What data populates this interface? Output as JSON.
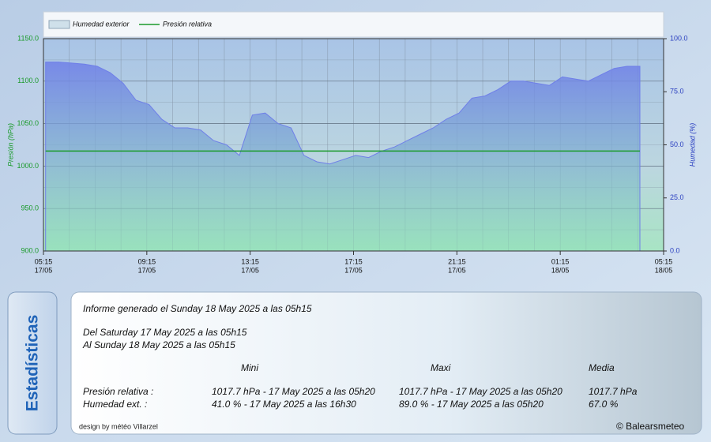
{
  "chart_data": {
    "type": "line",
    "ylabel": "Presión (hPa)",
    "y2label": "Humedad (%)",
    "ylim": [
      900,
      1150
    ],
    "yticks": [
      {
        "value": 900,
        "label": "900.0"
      },
      {
        "value": 950,
        "label": "950.0"
      },
      {
        "value": 1000,
        "label": "1000.0"
      },
      {
        "value": 1050,
        "label": "1050.0"
      },
      {
        "value": 1100,
        "label": "1100.0"
      },
      {
        "value": 1150,
        "label": "1150.0"
      }
    ],
    "y2lim": [
      0,
      100
    ],
    "y2ticks": [
      {
        "value": 0,
        "label": "0.0"
      },
      {
        "value": 25,
        "label": "25.0"
      },
      {
        "value": 50,
        "label": "50.0"
      },
      {
        "value": 75,
        "label": "75.0"
      },
      {
        "value": 100,
        "label": "100.0"
      }
    ],
    "xlim": [
      "17/05 05:15",
      "18/05 05:15"
    ],
    "xticks": [
      {
        "value": "17/05 05:15",
        "label": [
          "05:15",
          "17/05"
        ]
      },
      {
        "value": "17/05 09:15",
        "label": [
          "09:15",
          "17/05"
        ]
      },
      {
        "value": "17/05 13:15",
        "label": [
          "13:15",
          "17/05"
        ]
      },
      {
        "value": "17/05 17:15",
        "label": [
          "17:15",
          "17/05"
        ]
      },
      {
        "value": "17/05 21:15",
        "label": [
          "21:15",
          "17/05"
        ]
      },
      {
        "value": "18/05 01:15",
        "label": [
          "01:15",
          "18/05"
        ]
      },
      {
        "value": "18/05 05:15",
        "label": [
          "05:15",
          "18/05"
        ]
      }
    ],
    "grid": true,
    "x": [
      "17/05 05:20",
      "17/05 05:50",
      "17/05 06:20",
      "17/05 06:50",
      "17/05 07:20",
      "17/05 07:50",
      "17/05 08:20",
      "17/05 08:50",
      "17/05 09:20",
      "17/05 09:50",
      "17/05 10:20",
      "17/05 10:50",
      "17/05 11:20",
      "17/05 11:50",
      "17/05 12:20",
      "17/05 12:50",
      "17/05 13:20",
      "17/05 13:50",
      "17/05 14:20",
      "17/05 14:50",
      "17/05 15:20",
      "17/05 15:50",
      "17/05 16:20",
      "17/05 16:50",
      "17/05 17:20",
      "17/05 17:50",
      "17/05 18:20",
      "17/05 18:50",
      "17/05 19:20",
      "17/05 19:50",
      "17/05 20:20",
      "17/05 20:50",
      "17/05 21:20",
      "17/05 21:50",
      "17/05 22:20",
      "17/05 22:50",
      "17/05 23:20",
      "17/05 23:50",
      "18/05 00:20",
      "18/05 00:50",
      "18/05 01:20",
      "18/05 01:50",
      "18/05 02:20",
      "18/05 02:50",
      "18/05 03:20",
      "18/05 03:50",
      "18/05 04:20"
    ],
    "series": [
      {
        "name": "Humedad exterior",
        "color": "#6f7fe8",
        "style": "area",
        "axis": "y2",
        "values": [
          89,
          89,
          88.5,
          88,
          87,
          84,
          79,
          71,
          69,
          62,
          58,
          58,
          57,
          52,
          50,
          45,
          64,
          65,
          60,
          58,
          45,
          42,
          41,
          43,
          45,
          44,
          47,
          49,
          52,
          55,
          58,
          62,
          65,
          72,
          73,
          76,
          80,
          80,
          79,
          78,
          82,
          81,
          80,
          83,
          86,
          87,
          87
        ]
      },
      {
        "name": "Presión relativa",
        "color": "#1a9a2a",
        "style": "line",
        "values": [
          1017.7,
          1017.7,
          1017.7,
          1017.7,
          1017.7,
          1017.7,
          1017.7,
          1017.7,
          1017.7,
          1017.7,
          1017.7,
          1017.7,
          1017.7,
          1017.7,
          1017.7,
          1017.7,
          1017.7,
          1017.7,
          1017.7,
          1017.7,
          1017.7,
          1017.7,
          1017.7,
          1017.7,
          1017.7,
          1017.7,
          1017.7,
          1017.7,
          1017.7,
          1017.7,
          1017.7,
          1017.7,
          1017.7,
          1017.7,
          1017.7,
          1017.7,
          1017.7,
          1017.7,
          1017.7,
          1017.7,
          1017.7,
          1017.7,
          1017.7,
          1017.7,
          1017.7,
          1017.7,
          1017.7
        ]
      }
    ]
  },
  "stats": {
    "title": "Estadísticas",
    "generated": "Informe generado el Sunday 18 May 2025 a las 05h15",
    "from": "Del Saturday 17 May 2025 a las 05h15",
    "to": "Al Sunday 18 May 2025 a las 05h15",
    "columns": [
      "Mini",
      "Maxi",
      "Media"
    ],
    "rows": [
      {
        "label": "Presión relativa :",
        "cells": [
          "1017.7 hPa - 17 May 2025 a las 05h20",
          "1017.7 hPa - 17 May 2025 a las 05h20",
          "1017.7 hPa"
        ]
      },
      {
        "label": "Humedad ext. :",
        "cells": [
          "41.0 % - 17 May 2025 a las 16h30",
          "89.0 % - 17 May 2025 a las 05h20",
          "67.0 %"
        ]
      }
    ],
    "credit": "design by météo Villarzel",
    "copyright": "© Balearsmeteo"
  }
}
